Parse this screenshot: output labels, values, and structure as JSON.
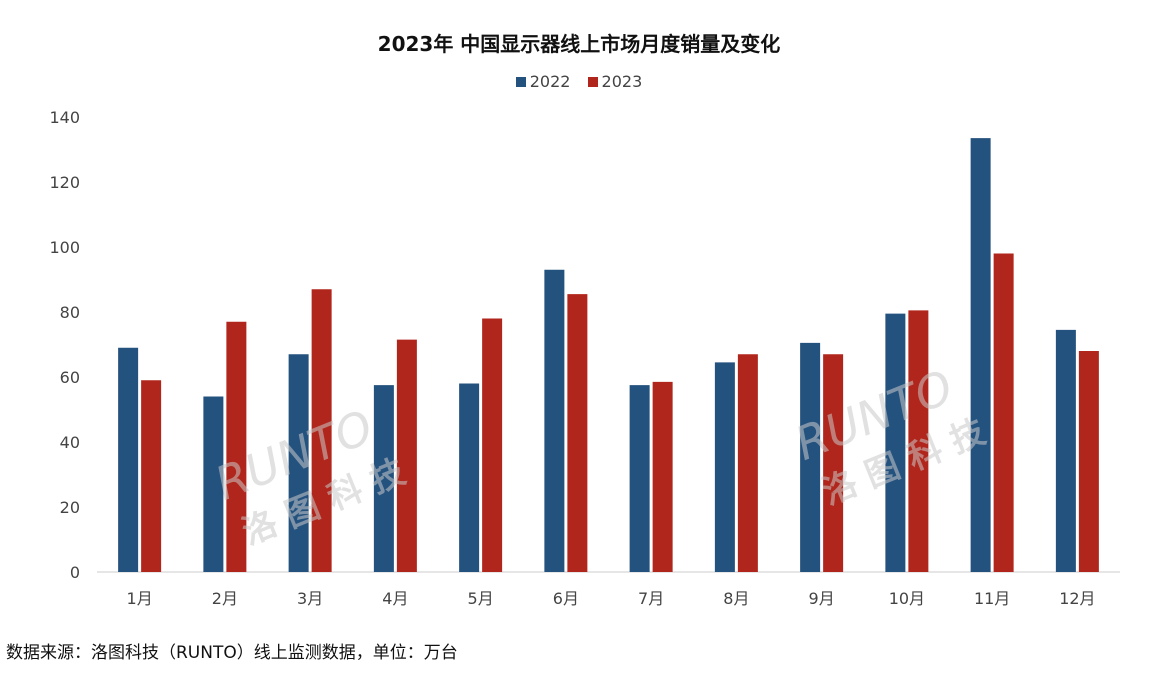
{
  "chart_data": {
    "type": "bar",
    "title": "2023年 中国显示器线上市场月度销量及变化",
    "categories": [
      "1月",
      "2月",
      "3月",
      "4月",
      "5月",
      "6月",
      "7月",
      "8月",
      "9月",
      "10月",
      "11月",
      "12月"
    ],
    "series": [
      {
        "name": "2022",
        "color": "#24527f",
        "values": [
          69,
          54,
          67,
          57.5,
          58,
          93,
          57.5,
          64.5,
          70.5,
          79.5,
          133.5,
          74.5
        ]
      },
      {
        "name": "2023",
        "color": "#b1261c",
        "values": [
          59,
          77,
          87,
          71.5,
          78,
          85.5,
          58.5,
          67,
          67,
          80.5,
          98,
          68
        ]
      }
    ],
    "ylim": [
      0,
      140
    ],
    "yticks": [
      0,
      20,
      40,
      60,
      80,
      100,
      120,
      140
    ],
    "grid": false,
    "legend": "top",
    "xlabel": "",
    "ylabel": "",
    "source": "数据来源：洛图科技（RUNTO）线上监测数据，单位：万台",
    "watermark": "RUNTO 洛图科技"
  }
}
